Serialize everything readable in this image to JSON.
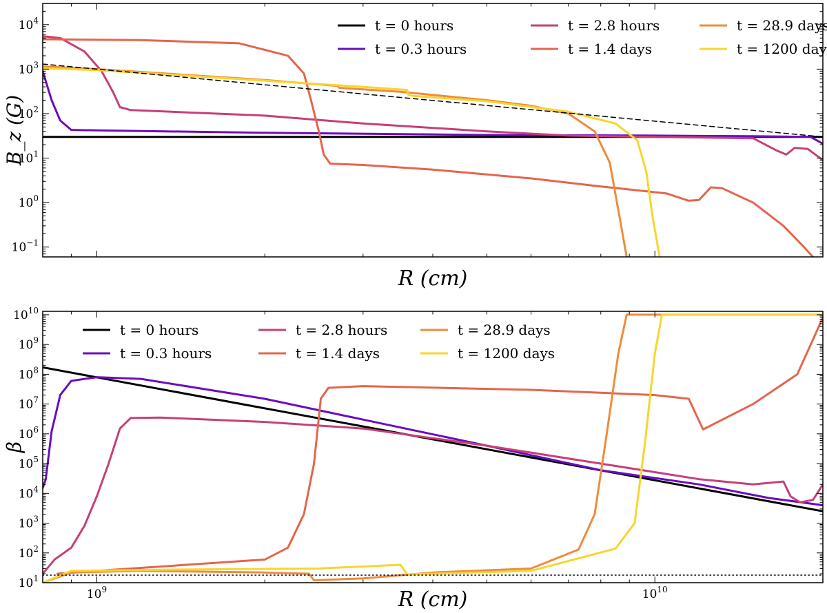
{
  "chart_data": [
    {
      "type": "line",
      "xlabel": "R (cm)",
      "ylabel": "B_z (G)",
      "x_scale": "log",
      "y_scale": "log",
      "xlim": [
        800000000,
        20000000000
      ],
      "ylim": [
        0.06,
        30000
      ],
      "yticks": [
        {
          "value": 0.1,
          "base": "10",
          "exp": "−1"
        },
        {
          "value": 1,
          "base": "10",
          "exp": "0"
        },
        {
          "value": 10,
          "base": "10",
          "exp": "1"
        },
        {
          "value": 100,
          "base": "10",
          "exp": "2"
        },
        {
          "value": 1000,
          "base": "10",
          "exp": "3"
        },
        {
          "value": 10000,
          "base": "10",
          "exp": "4"
        }
      ],
      "legend_placement": "top-right",
      "grid": false,
      "series": [
        {
          "name": "t = 0 hours",
          "color": "#000000",
          "points": [
            [
              800000000.0,
              30
            ],
            [
              20000000000.0,
              30
            ]
          ]
        },
        {
          "name": "t = 0.3 hours",
          "color": "#6a0dbe",
          "points": [
            [
              800000000.0,
              900
            ],
            [
              830000000.0,
              200
            ],
            [
              860000000.0,
              70
            ],
            [
              900000000.0,
              43
            ],
            [
              1000000000.0,
              42
            ],
            [
              2000000000.0,
              37
            ],
            [
              5000000000.0,
              33
            ],
            [
              10000000000.0,
              32
            ],
            [
              15000000000.0,
              31
            ],
            [
              19000000000.0,
              30
            ],
            [
              20000000000.0,
              21
            ]
          ]
        },
        {
          "name": "t = 2.8 hours",
          "color": "#c63f78",
          "points": [
            [
              800000000.0,
              5500
            ],
            [
              860000000.0,
              5000
            ],
            [
              950000000.0,
              2500
            ],
            [
              1020000000.0,
              900
            ],
            [
              1070000000.0,
              300
            ],
            [
              1100000000.0,
              140
            ],
            [
              1150000000.0,
              120
            ],
            [
              2000000000.0,
              90
            ],
            [
              3000000000.0,
              60
            ],
            [
              5000000000.0,
              40
            ],
            [
              7000000000.0,
              32
            ],
            [
              10000000000.0,
              30
            ],
            [
              15000000000.0,
              28
            ],
            [
              16500000000.0,
              15
            ],
            [
              17200000000.0,
              12
            ],
            [
              17800000000.0,
              17
            ],
            [
              18800000000.0,
              16
            ],
            [
              20000000000.0,
              9
            ]
          ]
        },
        {
          "name": "t = 1.4 days",
          "color": "#e4654d",
          "points": [
            [
              800000000.0,
              4700
            ],
            [
              1200000000.0,
              4500
            ],
            [
              1800000000.0,
              3800
            ],
            [
              2200000000.0,
              2000
            ],
            [
              2350000000.0,
              800
            ],
            [
              2420000000.0,
              200
            ],
            [
              2500000000.0,
              40
            ],
            [
              2550000000.0,
              12
            ],
            [
              2620000000.0,
              7.5
            ],
            [
              3000000000.0,
              7
            ],
            [
              4000000000.0,
              5.5
            ],
            [
              6000000000.0,
              3.5
            ],
            [
              8000000000.0,
              2.3
            ],
            [
              10500000000.0,
              1.6
            ],
            [
              11500000000.0,
              1.1
            ],
            [
              12000000000.0,
              1.15
            ],
            [
              12600000000.0,
              2.2
            ],
            [
              13200000000.0,
              2.1
            ],
            [
              15000000000.0,
              1
            ],
            [
              17000000000.0,
              0.3
            ],
            [
              18500000000.0,
              0.1
            ],
            [
              19200000000.0,
              0.06
            ]
          ]
        },
        {
          "name": "t = 28.9 days",
          "color": "#ef8b3b",
          "points": [
            [
              800000000.0,
              1150
            ],
            [
              1000000000.0,
              1000
            ],
            [
              2000000000.0,
              570
            ],
            [
              2700000000.0,
              420
            ],
            [
              2720000000.0,
              380
            ],
            [
              3500000000.0,
              310
            ],
            [
              5000000000.0,
              200
            ],
            [
              6000000000.0,
              150
            ],
            [
              7000000000.0,
              100
            ],
            [
              7800000000.0,
              40
            ],
            [
              8300000000.0,
              8
            ],
            [
              8700000000.0,
              0.3
            ],
            [
              8900000000.0,
              0.06
            ]
          ]
        },
        {
          "name": "t = 1200 days",
          "color": "#f8d52e",
          "points": [
            [
              800000000.0,
              1050
            ],
            [
              1000000000.0,
              950
            ],
            [
              2000000000.0,
              550
            ],
            [
              3000000000.0,
              400
            ],
            [
              3600000000.0,
              340
            ],
            [
              3620000000.0,
              260
            ],
            [
              3700000000.0,
              250
            ],
            [
              5000000000.0,
              190
            ],
            [
              7000000000.0,
              110
            ],
            [
              8500000000.0,
              60
            ],
            [
              9300000000.0,
              25
            ],
            [
              9650000000.0,
              5
            ],
            [
              9900000000.0,
              0.5
            ],
            [
              10200000000.0,
              0.06
            ]
          ]
        },
        {
          "name": "",
          "color": "#000000",
          "dashed": true,
          "points": [
            [
              800000000.0,
              1300
            ],
            [
              20000000000.0,
              30
            ]
          ]
        }
      ]
    },
    {
      "type": "line",
      "xlabel": "R (cm)",
      "ylabel": "β",
      "x_scale": "log",
      "y_scale": "log",
      "xlim": [
        800000000,
        20000000000
      ],
      "ylim": [
        10,
        13000000000
      ],
      "xticks": [
        {
          "value": 1000000000,
          "base": "10",
          "exp": "9"
        },
        {
          "value": 10000000000,
          "base": "10",
          "exp": "10"
        }
      ],
      "yticks": [
        {
          "value": 10,
          "base": "10",
          "exp": "1"
        },
        {
          "value": 100,
          "base": "10",
          "exp": "2"
        },
        {
          "value": 1000,
          "base": "10",
          "exp": "3"
        },
        {
          "value": 10000,
          "base": "10",
          "exp": "4"
        },
        {
          "value": 100000,
          "base": "10",
          "exp": "5"
        },
        {
          "value": 1000000,
          "base": "10",
          "exp": "6"
        },
        {
          "value": 10000000,
          "base": "10",
          "exp": "7"
        },
        {
          "value": 100000000,
          "base": "10",
          "exp": "8"
        },
        {
          "value": 1000000000,
          "base": "10",
          "exp": "9"
        },
        {
          "value": 10000000000,
          "base": "10",
          "exp": "10"
        }
      ],
      "legend_placement": "top-left",
      "grid": false,
      "series": [
        {
          "name": "t = 0 hours",
          "color": "#000000",
          "points": [
            [
              800000000.0,
              170000000.0
            ],
            [
              20000000000.0,
              2500.0
            ]
          ]
        },
        {
          "name": "t = 0.3 hours",
          "color": "#6a0dbe",
          "points": [
            [
              800000000.0,
              15000.0
            ],
            [
              810000000.0,
              30000.0
            ],
            [
              830000000.0,
              1200000.0
            ],
            [
              860000000.0,
              20000000.0
            ],
            [
              900000000.0,
              60000000.0
            ],
            [
              1000000000.0,
              80000000.0
            ],
            [
              1200000000.0,
              70000000.0
            ],
            [
              2000000000.0,
              15000000.0
            ],
            [
              3000000000.0,
              3000000.0
            ],
            [
              5000000000.0,
              400000.0
            ],
            [
              8000000000.0,
              60000.0
            ],
            [
              12000000000.0,
              20000.0
            ],
            [
              16000000000.0,
              7000.0
            ],
            [
              20000000000.0,
              4000.0
            ]
          ]
        },
        {
          "name": "t = 2.8 hours",
          "color": "#c63f78",
          "points": [
            [
              800000000.0,
              20
            ],
            [
              840000000.0,
              60
            ],
            [
              900000000.0,
              150
            ],
            [
              950000000.0,
              800
            ],
            [
              1000000000.0,
              8000.0
            ],
            [
              1050000000.0,
              100000.0
            ],
            [
              1100000000.0,
              1500000.0
            ],
            [
              1150000000.0,
              3400000.0
            ],
            [
              1300000000.0,
              3500000.0
            ],
            [
              2000000000.0,
              2500000.0
            ],
            [
              3000000000.0,
              1500000.0
            ],
            [
              5000000000.0,
              400000.0
            ],
            [
              8000000000.0,
              100000.0
            ],
            [
              12000000000.0,
              30000.0
            ],
            [
              15000000000.0,
              20000.0
            ],
            [
              17000000000.0,
              25000.0
            ],
            [
              17500000000.0,
              8000.0
            ],
            [
              18200000000.0,
              5000.0
            ],
            [
              19200000000.0,
              6000.0
            ],
            [
              20000000000.0,
              20000.0
            ]
          ]
        },
        {
          "name": "t = 1.4 days",
          "color": "#e4654d",
          "points": [
            [
              850000000.0,
              20
            ],
            [
              1000000000.0,
              25
            ],
            [
              2000000000.0,
              60
            ],
            [
              2200000000.0,
              150
            ],
            [
              2350000000.0,
              2000.0
            ],
            [
              2450000000.0,
              100000.0
            ],
            [
              2520000000.0,
              15000000.0
            ],
            [
              2600000000.0,
              35000000.0
            ],
            [
              3000000000.0,
              40000000.0
            ],
            [
              6000000000.0,
              30000000.0
            ],
            [
              10000000000.0,
              20000000.0
            ],
            [
              11500000000.0,
              15000000.0
            ],
            [
              12200000000.0,
              1400000.0
            ],
            [
              15000000000.0,
              10000000.0
            ],
            [
              18000000000.0,
              100000000.0
            ],
            [
              20000000000.0,
              8000000000.0
            ]
          ]
        },
        {
          "name": "t = 28.9 days",
          "color": "#ef8b3b",
          "points": [
            [
              800000000.0,
              10
            ],
            [
              900000000.0,
              22
            ],
            [
              1200000000.0,
              25
            ],
            [
              2000000000.0,
              22
            ],
            [
              2400000000.0,
              20
            ],
            [
              2450000000.0,
              12
            ],
            [
              3000000000.0,
              14
            ],
            [
              4000000000.0,
              22
            ],
            [
              6000000000.0,
              30
            ],
            [
              7300000000.0,
              130
            ],
            [
              7800000000.0,
              2000.0
            ],
            [
              8200000000.0,
              1000000.0
            ],
            [
              8600000000.0,
              500000000.0
            ],
            [
              8900000000.0,
              10000000000.0
            ],
            [
              20000000000.0,
              10000000000.0
            ]
          ]
        },
        {
          "name": "t = 1200 days",
          "color": "#f8d52e",
          "points": [
            [
              800000000.0,
              10
            ],
            [
              900000000.0,
              25
            ],
            [
              1500000000.0,
              28
            ],
            [
              2500000000.0,
              30
            ],
            [
              3500000000.0,
              40
            ],
            [
              3600000000.0,
              19
            ],
            [
              4000000000.0,
              20
            ],
            [
              6000000000.0,
              25
            ],
            [
              8500000000.0,
              140
            ],
            [
              9200000000.0,
              1000.0
            ],
            [
              9600000000.0,
              500000.0
            ],
            [
              10000000000.0,
              500000000.0
            ],
            [
              10300000000.0,
              10000000000.0
            ],
            [
              20000000000.0,
              10000000000.0
            ]
          ]
        },
        {
          "name": "",
          "color": "#000000",
          "dotted": true,
          "points": [
            [
              800000000.0,
              18
            ],
            [
              20000000000.0,
              18
            ]
          ]
        }
      ]
    }
  ]
}
